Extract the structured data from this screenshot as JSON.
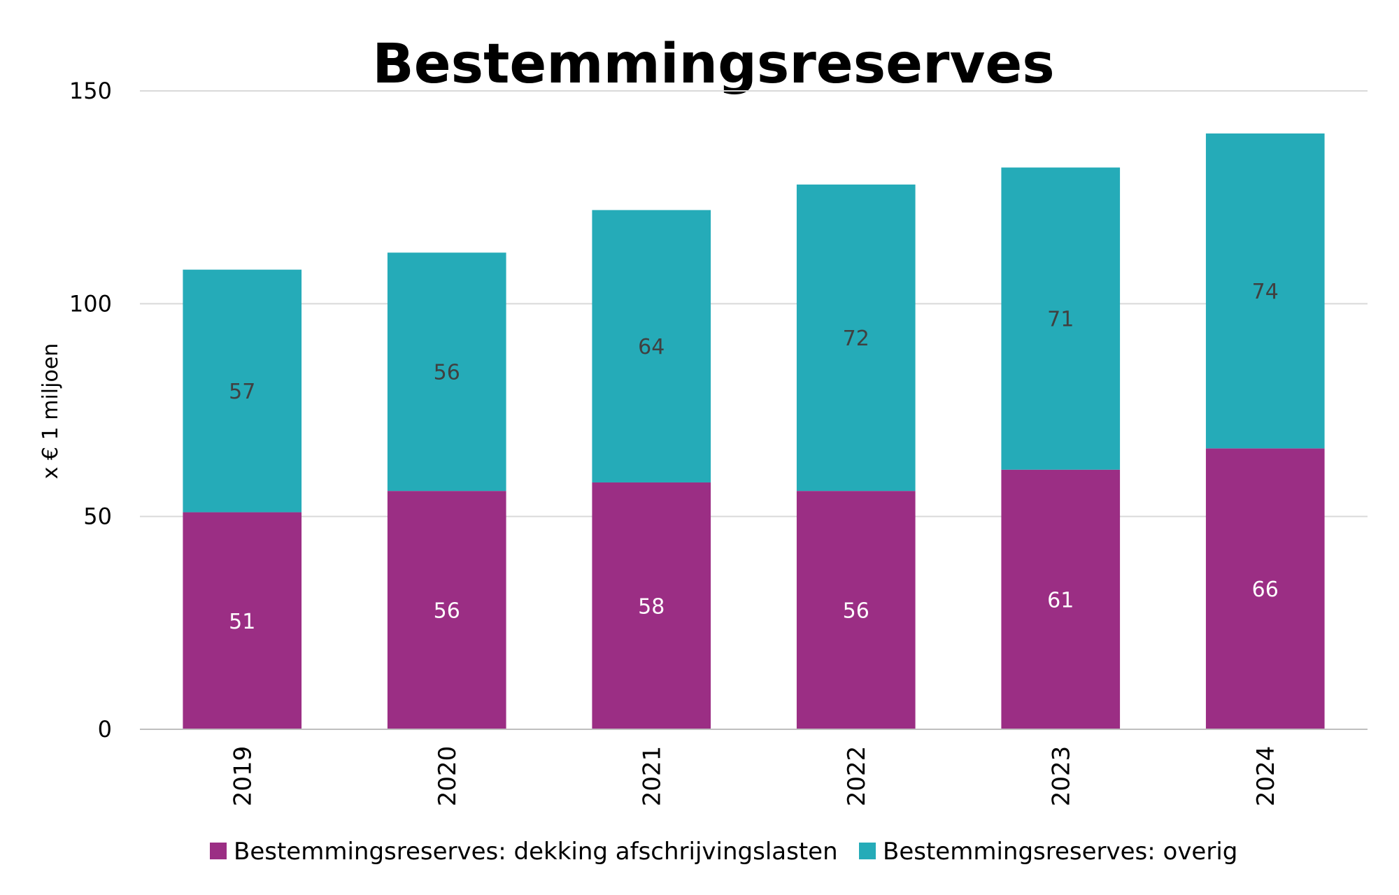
{
  "chart_data": {
    "type": "bar",
    "stacked": true,
    "title": "Bestemmingsreserves",
    "xlabel": "",
    "ylabel": "x € 1 miljoen",
    "ylim": [
      0,
      150
    ],
    "yticks": [
      0,
      50,
      100,
      150
    ],
    "grid": true,
    "legend_position": "bottom",
    "categories": [
      "2019",
      "2020",
      "2021",
      "2022",
      "2023",
      "2024"
    ],
    "series": [
      {
        "name": "Bestemmingsreserves: dekking afschrijvingslasten",
        "color": "#9b2e84",
        "values": [
          51,
          56,
          58,
          56,
          61,
          66
        ]
      },
      {
        "name": "Bestemmingsreserves: overig",
        "color": "#25abb8",
        "values": [
          57,
          56,
          64,
          72,
          71,
          74
        ]
      }
    ]
  }
}
